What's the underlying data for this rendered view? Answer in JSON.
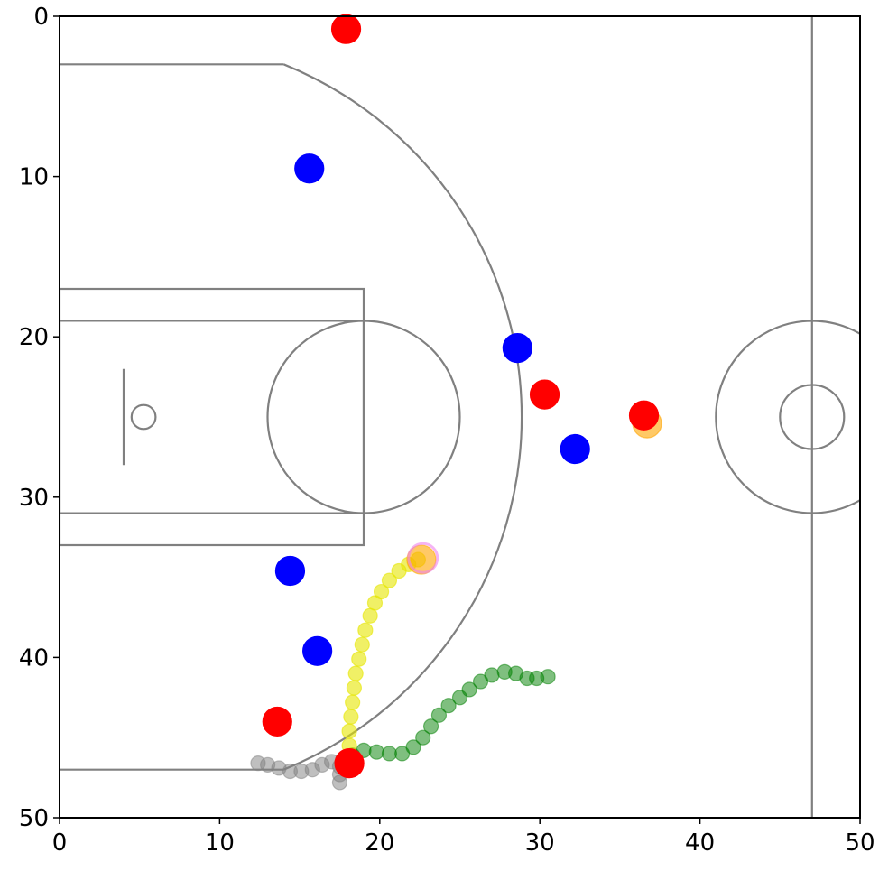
{
  "chart_data": {
    "type": "scatter",
    "xlim": [
      0,
      50
    ],
    "ylim": [
      0,
      50
    ],
    "y_inverted": true,
    "xticks": [
      0,
      10,
      20,
      30,
      40,
      50
    ],
    "yticks": [
      0,
      10,
      20,
      30,
      40,
      50
    ],
    "series": [
      {
        "color": "#808080",
        "alpha": 0.5,
        "size": 8,
        "x": [
          12.4,
          13.0,
          13.7,
          14.4,
          15.1,
          15.8,
          16.4,
          17.0,
          17.5,
          17.5,
          17.5
        ],
        "y": [
          46.6,
          46.7,
          46.9,
          47.1,
          47.1,
          47.0,
          46.7,
          46.5,
          46.8,
          47.3,
          47.8
        ]
      },
      {
        "color": "#008000",
        "alpha": 0.5,
        "size": 8,
        "x": [
          18.3,
          19.0,
          19.8,
          20.6,
          21.4,
          22.1,
          22.7,
          23.2,
          23.7,
          24.3,
          25.0,
          25.6,
          26.3,
          27.0,
          27.8,
          28.5,
          29.2,
          29.8,
          30.5
        ],
        "y": [
          46.1,
          45.8,
          45.9,
          46.0,
          46.0,
          45.6,
          45.0,
          44.3,
          43.6,
          43.0,
          42.5,
          42.0,
          41.5,
          41.1,
          40.9,
          41.0,
          41.3,
          41.3,
          41.2
        ]
      },
      {
        "color": "#e6e600",
        "alpha": 0.6,
        "size": 8,
        "x": [
          18.1,
          18.1,
          18.1,
          18.2,
          18.3,
          18.4,
          18.5,
          18.7,
          18.9,
          19.1,
          19.4,
          19.7,
          20.1,
          20.6,
          21.2,
          21.8,
          22.4
        ],
        "y": [
          46.3,
          45.5,
          44.6,
          43.7,
          42.8,
          41.9,
          41.0,
          40.1,
          39.2,
          38.3,
          37.4,
          36.6,
          35.9,
          35.2,
          34.6,
          34.2,
          33.9
        ]
      },
      {
        "color": "#ffa500",
        "alpha": 0.6,
        "size": 16,
        "x": [
          36.7,
          22.6
        ],
        "y": [
          25.4,
          33.9
        ]
      },
      {
        "color": "#ee82ee",
        "alpha": 0.6,
        "size": 16,
        "marker": "hollow",
        "x": [
          22.7
        ],
        "y": [
          33.8
        ]
      },
      {
        "color": "#0000ff",
        "alpha": 1,
        "size": 16,
        "x": [
          15.6,
          28.6,
          32.2,
          14.4,
          16.1
        ],
        "y": [
          9.5,
          20.7,
          27.0,
          34.6,
          39.6
        ]
      },
      {
        "color": "#ff0000",
        "alpha": 1,
        "size": 16,
        "x": [
          17.9,
          30.3,
          36.5,
          13.6,
          18.1
        ],
        "y": [
          0.8,
          23.6,
          24.9,
          44.0,
          46.6
        ]
      }
    ]
  }
}
